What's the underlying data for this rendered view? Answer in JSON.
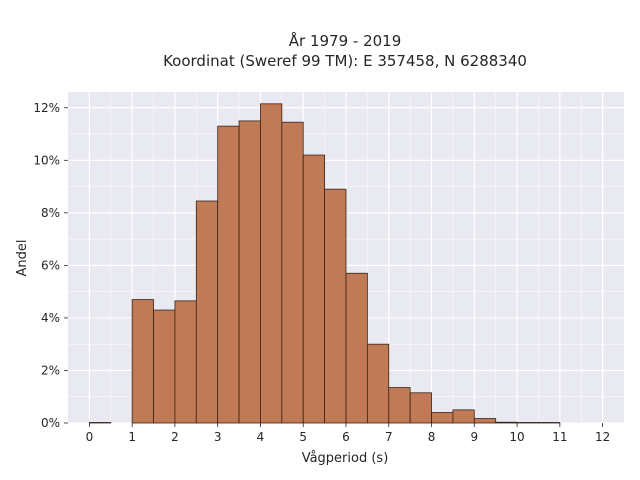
{
  "chart_data": {
    "type": "bar",
    "title_lines": [
      "År 1979 - 2019",
      "Koordinat (Sweref 99 TM): E 357458, N 6288340"
    ],
    "xlabel": "Vågperiod (s)",
    "ylabel": "Andel",
    "xlim": [
      -0.5,
      12.5
    ],
    "ylim": [
      0,
      12.6
    ],
    "x_ticks": [
      0,
      1,
      2,
      3,
      4,
      5,
      6,
      7,
      8,
      9,
      10,
      11,
      12
    ],
    "x_tick_labels": [
      "0",
      "1",
      "2",
      "3",
      "4",
      "5",
      "6",
      "7",
      "8",
      "9",
      "10",
      "11",
      "12"
    ],
    "y_ticks": [
      0,
      2,
      4,
      6,
      8,
      10,
      12
    ],
    "y_tick_labels": [
      "0%",
      "2%",
      "4%",
      "6%",
      "8%",
      "10%",
      "12%"
    ],
    "grid": true,
    "bar_color": "#c07a55",
    "bar_edge_color": "#3a2418",
    "background_color": "#e9e9f1",
    "bins": [
      {
        "x0": 0.0,
        "x1": 0.5,
        "value": 0.02
      },
      {
        "x0": 1.0,
        "x1": 1.5,
        "value": 4.7
      },
      {
        "x0": 1.5,
        "x1": 2.0,
        "value": 4.3
      },
      {
        "x0": 2.0,
        "x1": 2.5,
        "value": 4.65
      },
      {
        "x0": 2.5,
        "x1": 3.0,
        "value": 8.45
      },
      {
        "x0": 3.0,
        "x1": 3.5,
        "value": 11.3
      },
      {
        "x0": 3.5,
        "x1": 4.0,
        "value": 11.5
      },
      {
        "x0": 4.0,
        "x1": 4.5,
        "value": 12.15
      },
      {
        "x0": 4.5,
        "x1": 5.0,
        "value": 11.45
      },
      {
        "x0": 5.0,
        "x1": 5.5,
        "value": 10.2
      },
      {
        "x0": 5.5,
        "x1": 6.0,
        "value": 8.9
      },
      {
        "x0": 6.0,
        "x1": 6.5,
        "value": 5.7
      },
      {
        "x0": 6.5,
        "x1": 7.0,
        "value": 3.0
      },
      {
        "x0": 7.0,
        "x1": 7.5,
        "value": 1.35
      },
      {
        "x0": 7.5,
        "x1": 8.0,
        "value": 1.15
      },
      {
        "x0": 8.0,
        "x1": 8.5,
        "value": 0.4
      },
      {
        "x0": 8.5,
        "x1": 9.0,
        "value": 0.5
      },
      {
        "x0": 9.0,
        "x1": 9.5,
        "value": 0.17
      },
      {
        "x0": 9.5,
        "x1": 10.0,
        "value": 0.03
      },
      {
        "x0": 10.0,
        "x1": 10.5,
        "value": 0.02
      },
      {
        "x0": 10.5,
        "x1": 11.0,
        "value": 0.02
      }
    ]
  }
}
